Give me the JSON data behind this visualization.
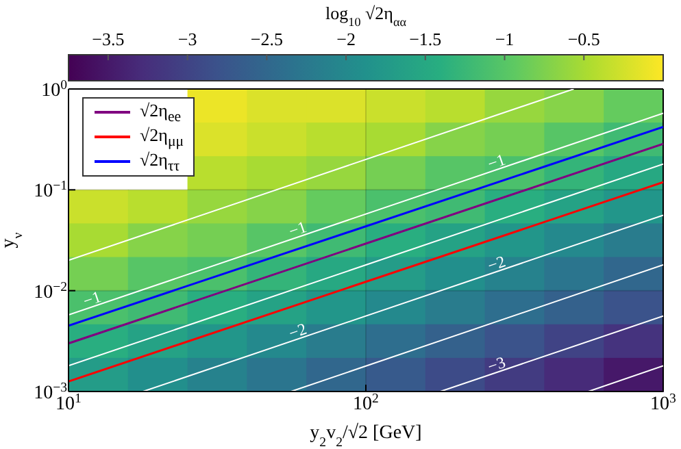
{
  "chart_data": [
    {
      "type": "heatmap",
      "clabel": "log$_{10}$ √2η$_{αα}$",
      "categories": [
        null,
        null,
        null,
        null,
        null,
        null,
        null,
        null,
        null,
        null
      ],
      "y_categories": [
        null,
        null,
        null,
        null,
        null,
        null,
        null,
        null,
        null
      ],
      "cells": [
        [
          null,
          null,
          -0.1,
          -0.2,
          -0.2,
          -0.3,
          -0.4,
          -0.6,
          -0.7,
          -0.9
        ],
        [
          null,
          null,
          -0.2,
          -0.3,
          -0.4,
          -0.5,
          -0.7,
          -0.8,
          -1.0,
          -1.2
        ],
        [
          null,
          null,
          -0.4,
          -0.5,
          -0.6,
          -0.8,
          -1.0,
          -1.1,
          -1.3,
          -1.5
        ],
        [
          -0.3,
          -0.4,
          -0.6,
          -0.7,
          -0.9,
          -1.1,
          -1.2,
          -1.4,
          -1.6,
          -1.8
        ],
        [
          -0.5,
          -0.7,
          -0.8,
          -1.0,
          -1.2,
          -1.4,
          -1.6,
          -1.8,
          -2.0,
          -2.2
        ],
        [
          -0.8,
          -1.0,
          -1.1,
          -1.3,
          -1.5,
          -1.7,
          -1.9,
          -2.1,
          -2.3,
          -2.5
        ],
        [
          -1.1,
          -1.2,
          -1.4,
          -1.6,
          -1.8,
          -2.0,
          -2.2,
          -2.4,
          -2.6,
          -2.8
        ],
        [
          -1.4,
          -1.6,
          -1.8,
          -2.0,
          -2.2,
          -2.4,
          -2.6,
          -2.8,
          -3.0,
          -3.2
        ],
        [
          -1.7,
          -1.9,
          -2.1,
          -2.3,
          -2.5,
          -2.7,
          -2.9,
          -3.1,
          -3.3,
          -3.5
        ]
      ],
      "clim": [
        -3.75,
        0
      ],
      "cticks": [
        {
          "value": -3.5,
          "label": "−3.5"
        },
        {
          "value": -3,
          "label": "−3"
        },
        {
          "value": -2.5,
          "label": "−2.5"
        },
        {
          "value": -2,
          "label": "−2"
        },
        {
          "value": -1.5,
          "label": "−1.5"
        },
        {
          "value": -1,
          "label": "−1"
        },
        {
          "value": -0.5,
          "label": "−0.5"
        }
      ]
    },
    {
      "type": "line",
      "xlabel": "y$_{2}$v$_{2}$/√2 [GeV]",
      "ylabel": "y$_{ν}$",
      "log": "xy",
      "xlim": [
        10,
        1000
      ],
      "ylim": [
        0.001,
        1
      ],
      "xticks": [
        {
          "value": 10,
          "label": "10$^{1}$"
        },
        {
          "value": 100,
          "label": "10$^{2}$"
        },
        {
          "value": 1000,
          "label": "10$^{3}$"
        }
      ],
      "yticks": [
        {
          "value": 0.001,
          "label": "10$^{−3}$"
        },
        {
          "value": 0.01,
          "label": "10$^{−2}$"
        },
        {
          "value": 0.1,
          "label": "10$^{−1}$"
        },
        {
          "value": 1,
          "label": "10$^{0}$"
        }
      ],
      "grid": true,
      "legend": "top left",
      "series": [
        {
          "type": "line",
          "color": "#ffffff",
          "x": [
            10,
            500
          ],
          "values": [
            0.02,
            1
          ]
        },
        {
          "type": "line",
          "color": "#ffffff",
          "x": [
            10,
            1000
          ],
          "values": [
            0.00575,
            0.575
          ]
        },
        {
          "type": "line",
          "color": "#ffffff",
          "x": [
            10,
            1000
          ],
          "values": [
            0.0018,
            0.18
          ]
        },
        {
          "type": "line",
          "color": "#ffffff",
          "x": [
            17.8,
            1000
          ],
          "values": [
            0.001,
            0.056
          ]
        },
        {
          "type": "line",
          "color": "#ffffff",
          "x": [
            56,
            1000
          ],
          "values": [
            0.001,
            0.018
          ]
        },
        {
          "type": "line",
          "color": "#ffffff",
          "x": [
            178,
            1000
          ],
          "values": [
            0.001,
            0.0056
          ]
        },
        {
          "type": "line",
          "color": "#ffffff",
          "x": [
            560,
            1000
          ],
          "values": [
            0.001,
            0.0018
          ]
        },
        {
          "type": "line",
          "name": "√2η$_{ee}$",
          "color": "#800080",
          "x": [
            10,
            1000
          ],
          "values": [
            0.003,
            0.286
          ]
        },
        {
          "type": "line",
          "name": "√2η$_{μμ}$",
          "color": "#ff0000",
          "x": [
            10,
            1000
          ],
          "values": [
            0.00126,
            0.119
          ]
        },
        {
          "type": "line",
          "name": "√2η$_{ττ}$",
          "color": "#0000ff",
          "x": [
            10,
            1000
          ],
          "values": [
            0.0045,
            0.42
          ]
        }
      ],
      "annotations": [
        {
          "text": "−1",
          "x": 12,
          "y": 0.0069
        },
        {
          "text": "−1",
          "x": 59,
          "y": 0.0339
        },
        {
          "text": "−1",
          "x": 275,
          "y": 0.158
        },
        {
          "text": "−2",
          "x": 59,
          "y": 0.00331
        },
        {
          "text": "−2",
          "x": 275,
          "y": 0.01545
        },
        {
          "text": "−3",
          "x": 275,
          "y": 0.001545
        }
      ]
    }
  ]
}
